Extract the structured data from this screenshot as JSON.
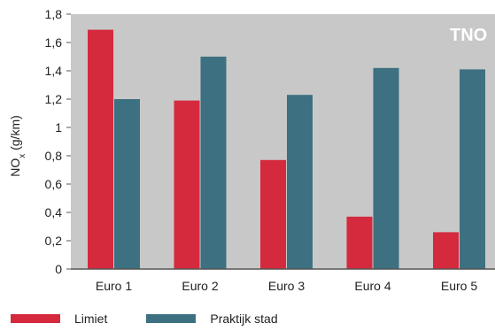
{
  "chart_data": {
    "type": "bar",
    "categories": [
      "Euro 1",
      "Euro 2",
      "Euro 3",
      "Euro 4",
      "Euro 5"
    ],
    "series": [
      {
        "name": "Limiet",
        "color": "#d5293d",
        "values": [
          1.69,
          1.19,
          0.77,
          0.37,
          0.26
        ]
      },
      {
        "name": "Praktijk stad",
        "color": "#3d7080",
        "values": [
          1.2,
          1.5,
          1.23,
          1.42,
          1.41
        ]
      }
    ],
    "ylabel_main": "NO",
    "ylabel_sub": "x",
    "ylabel_unit": " (g/km)",
    "ylim": [
      0,
      1.8
    ],
    "yticks": [
      "0",
      "0,2",
      "0,4",
      "0,6",
      "0,8",
      "1",
      "1,2",
      "1,4",
      "1,6",
      "1,8"
    ],
    "background": "#c8c8c8",
    "watermark": "TNO",
    "legend_position": "bottom-left"
  }
}
